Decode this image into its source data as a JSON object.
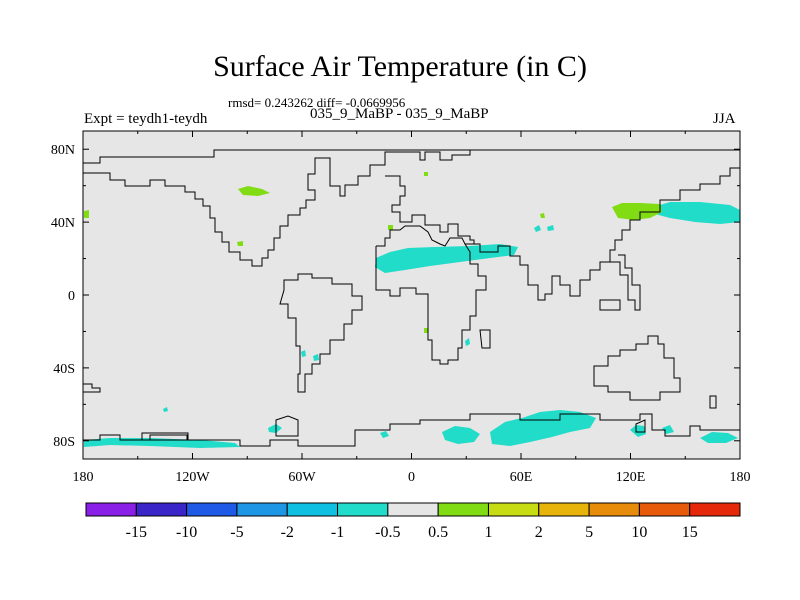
{
  "header": {
    "title": "Surface Air Temperature (in C)",
    "stats": "rmsd= 0.243262 diff= -0.0669956",
    "experiment": "Expt = teydh1-teydh",
    "case": "035_9_MaBP - 035_9_MaBP",
    "season": "JJA"
  },
  "axes": {
    "lat_labels": [
      "80N",
      "40N",
      "0",
      "40S",
      "80S"
    ],
    "lat_values": [
      80,
      40,
      0,
      -40,
      -80
    ],
    "lon_labels": [
      "180",
      "120W",
      "60W",
      "0",
      "60E",
      "120E",
      "180"
    ],
    "lon_values": [
      -180,
      -120,
      -60,
      0,
      60,
      120,
      180
    ],
    "lat_range": [
      -90,
      90
    ],
    "lon_range": [
      -180,
      180
    ]
  },
  "colorbar": {
    "labels": [
      "-15",
      "-10",
      "-5",
      "-2",
      "-1",
      "-0.5",
      "0.5",
      "1",
      "2",
      "5",
      "10",
      "15"
    ],
    "colors": [
      "#8a20e8",
      "#3a26c8",
      "#1e5ae6",
      "#1e96e6",
      "#10c0e0",
      "#20dcc8",
      "#e6e6e6",
      "#82dc14",
      "#c8dc14",
      "#e6b40a",
      "#e68c0a",
      "#e65a0a",
      "#e6280a"
    ]
  },
  "map": {
    "background_color": "#e6e6e6",
    "coast_color": "#000000"
  }
}
